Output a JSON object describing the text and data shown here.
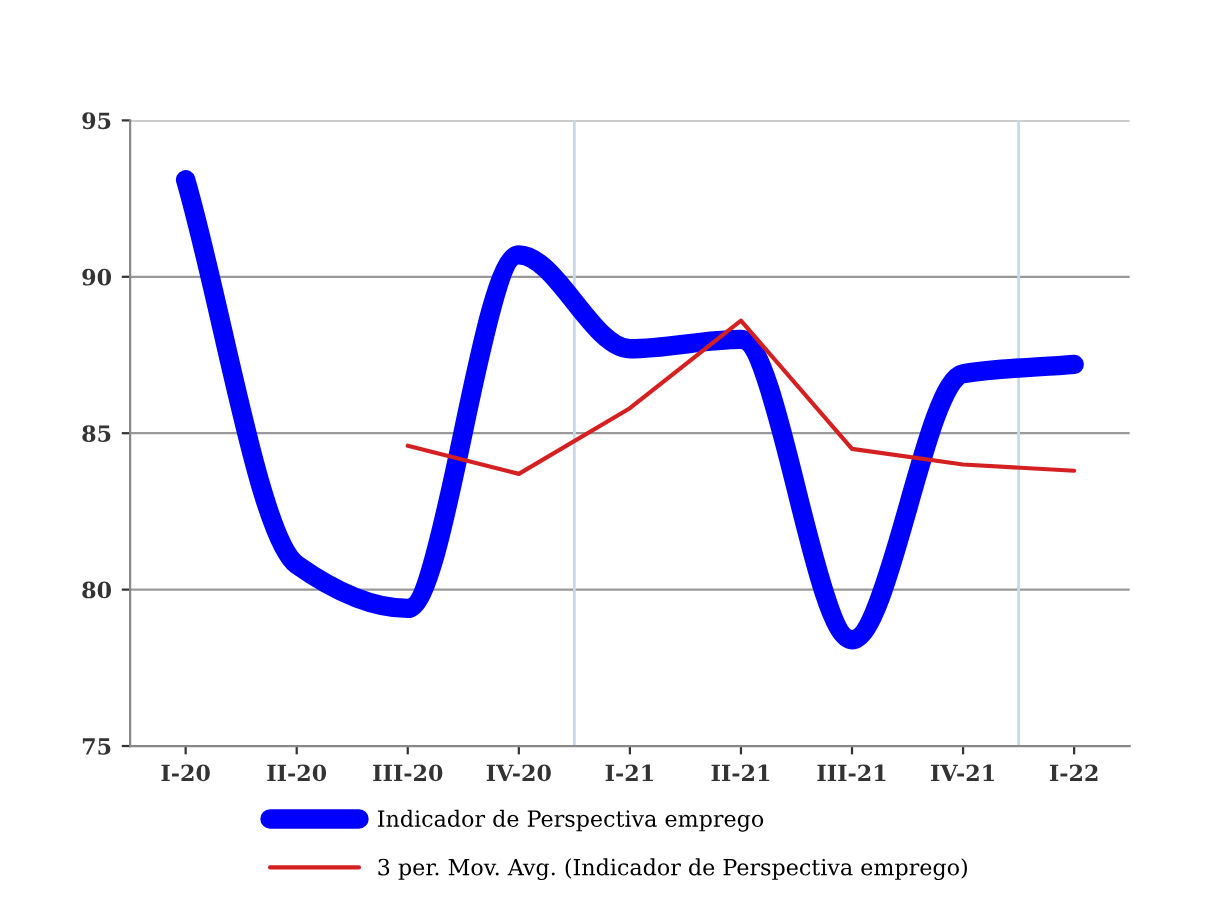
{
  "chart_data": {
    "type": "line",
    "categories": [
      "I-20",
      "II-20",
      "III-20",
      "IV-20",
      "I-21",
      "II-21",
      "III-21",
      "IV-21",
      "I-22"
    ],
    "series": [
      {
        "name": "Indicador de Perspectiva emprego",
        "color": "#0000ff",
        "values": [
          93.1,
          80.8,
          79.4,
          90.7,
          87.7,
          88.0,
          78.4,
          86.9,
          87.2
        ]
      },
      {
        "name": "3 per. Mov. Avg. (Indicador de Perspectiva emprego)",
        "color": "#d42020",
        "values": [
          null,
          null,
          84.6,
          83.7,
          85.8,
          88.6,
          84.5,
          84.0,
          83.8
        ]
      }
    ],
    "ylim": [
      75,
      95
    ],
    "yticks": [
      75,
      80,
      85,
      90,
      95
    ],
    "grid": "y",
    "legend": "bottom",
    "marker": "none"
  }
}
